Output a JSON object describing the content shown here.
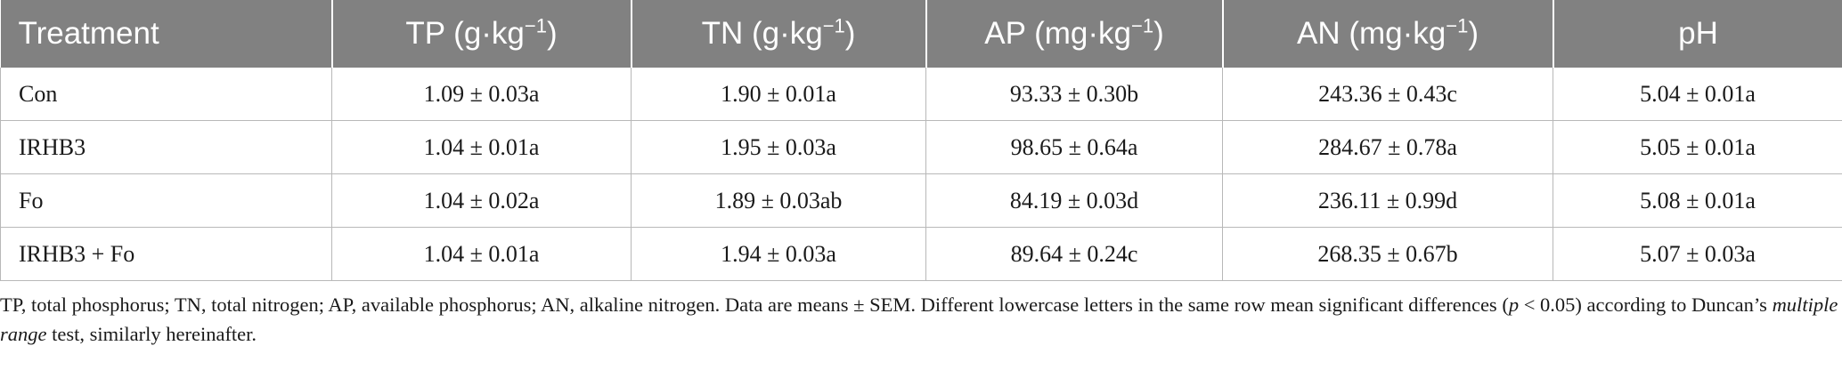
{
  "table": {
    "headers": [
      {
        "label": "Treatment",
        "unit": ""
      },
      {
        "label": "TP (g·kg",
        "unit": "−1",
        "close": ")"
      },
      {
        "label": "TN (g·kg",
        "unit": "−1",
        "close": ")"
      },
      {
        "label": "AP (mg·kg",
        "unit": "−1",
        "close": ")"
      },
      {
        "label": "AN (mg·kg",
        "unit": "−1",
        "close": ")"
      },
      {
        "label": "pH",
        "unit": ""
      }
    ],
    "rows": [
      [
        "Con",
        "1.09 ± 0.03a",
        "1.90 ± 0.01a",
        "93.33 ± 0.30b",
        "243.36 ± 0.43c",
        "5.04 ± 0.01a"
      ],
      [
        "IRHB3",
        "1.04 ± 0.01a",
        "1.95 ± 0.03a",
        "98.65 ± 0.64a",
        "284.67 ± 0.78a",
        "5.05 ± 0.01a"
      ],
      [
        "Fo",
        "1.04 ± 0.02a",
        "1.89 ± 0.03ab",
        "84.19 ± 0.03d",
        "236.11 ± 0.99d",
        "5.08 ± 0.01a"
      ],
      [
        "IRHB3 + Fo",
        "1.04 ± 0.01a",
        "1.94 ± 0.03a",
        "89.64 ± 0.24c",
        "268.35 ± 0.67b",
        "5.07 ± 0.03a"
      ]
    ]
  },
  "footnote": {
    "part1": "TP, total phosphorus; TN, total nitrogen; AP, available phosphorus; AN, alkaline nitrogen. Data are means ± SEM. Different lowercase letters in the same row mean significant differences (",
    "p": "p",
    "part2": " < 0.05) according to Duncan’s ",
    "italic": "multiple range",
    "part3": " test, similarly hereinafter."
  }
}
